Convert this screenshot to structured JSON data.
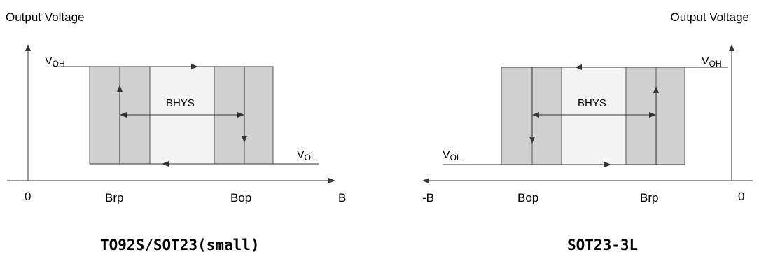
{
  "left": {
    "y_axis_label": "Output Voltage",
    "voh_main": "V",
    "voh_sub": "OH",
    "vol_main": "V",
    "vol_sub": "OL",
    "hys_label": "BHYS",
    "x_origin": "0",
    "x_label_1": "Brp",
    "x_label_2": "Bop",
    "x_end": "B",
    "caption": "TO92S/SOT23(small)"
  },
  "right": {
    "y_axis_label": "Output Voltage",
    "voh_main": "V",
    "voh_sub": "OH",
    "vol_main": "V",
    "vol_sub": "OL",
    "hys_label": "BHYS",
    "x_origin": "0",
    "x_label_1": "Bop",
    "x_label_2": "Brp",
    "x_end": "-B",
    "caption": "SOT23-3L"
  },
  "colors": {
    "band_dark": "#d0d0d0",
    "band_light": "#f4f4f4",
    "line": "#333333"
  }
}
